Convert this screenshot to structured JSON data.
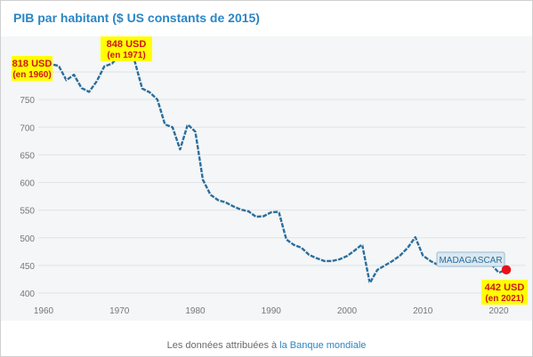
{
  "chart_data": {
    "type": "line",
    "title": "PIB par habitant ($ US constants de 2015)",
    "xlabel": "",
    "ylabel": "",
    "xlim": [
      1960,
      2021
    ],
    "ylim": [
      400,
      850
    ],
    "x_ticks": [
      1960,
      1970,
      1980,
      1990,
      2000,
      2010,
      2020
    ],
    "y_ticks": [
      400,
      450,
      500,
      550,
      600,
      650,
      700,
      750,
      800
    ],
    "grid": "horizontal",
    "line_color": "#2c6e9c",
    "series": [
      {
        "name": "",
        "x": [
          1960,
          1961,
          1962,
          1963,
          1964,
          1965,
          1966,
          1967,
          1968,
          1969,
          1970,
          1971,
          1972,
          1973,
          1974,
          1975,
          1976,
          1977,
          1978,
          1979,
          1980,
          1981,
          1982,
          1983,
          1984,
          1985,
          1986,
          1987,
          1988,
          1989,
          1990,
          1991,
          1992,
          1993,
          1994,
          1995,
          1996,
          1997,
          1998,
          1999,
          2000,
          2001,
          2002,
          2003,
          2004,
          2005,
          2006,
          2007,
          2008,
          2009,
          2010,
          2011,
          2012,
          2013,
          2014,
          2015,
          2016,
          2017,
          2018,
          2019,
          2020,
          2021
        ],
        "values": [
          818,
          814,
          811,
          785,
          795,
          771,
          764,
          783,
          810,
          815,
          830,
          848,
          820,
          770,
          763,
          750,
          705,
          700,
          660,
          705,
          692,
          605,
          578,
          568,
          564,
          557,
          551,
          548,
          538,
          539,
          546,
          547,
          497,
          487,
          482,
          469,
          463,
          458,
          458,
          461,
          467,
          477,
          488,
          418,
          442,
          450,
          458,
          468,
          482,
          501,
          468,
          458,
          451,
          452,
          454,
          455,
          456,
          456,
          455,
          452,
          437,
          442
        ]
      }
    ],
    "annotations": [
      {
        "text": "818 USD",
        "sub": "(en 1960)",
        "x": 1960,
        "y": 818
      },
      {
        "text": "848 USD",
        "sub": "(en 1971)",
        "x": 1971,
        "y": 848
      },
      {
        "text": "442 USD",
        "sub": "(en 2021)",
        "x": 2021,
        "y": 442
      }
    ],
    "series_label": "MADAGASCAR",
    "highlight_color": "#ffff00",
    "marker_color": "#e8101a"
  },
  "footer": {
    "prefix": "Les données attribuées à ",
    "link": "la Banque mondiale"
  }
}
